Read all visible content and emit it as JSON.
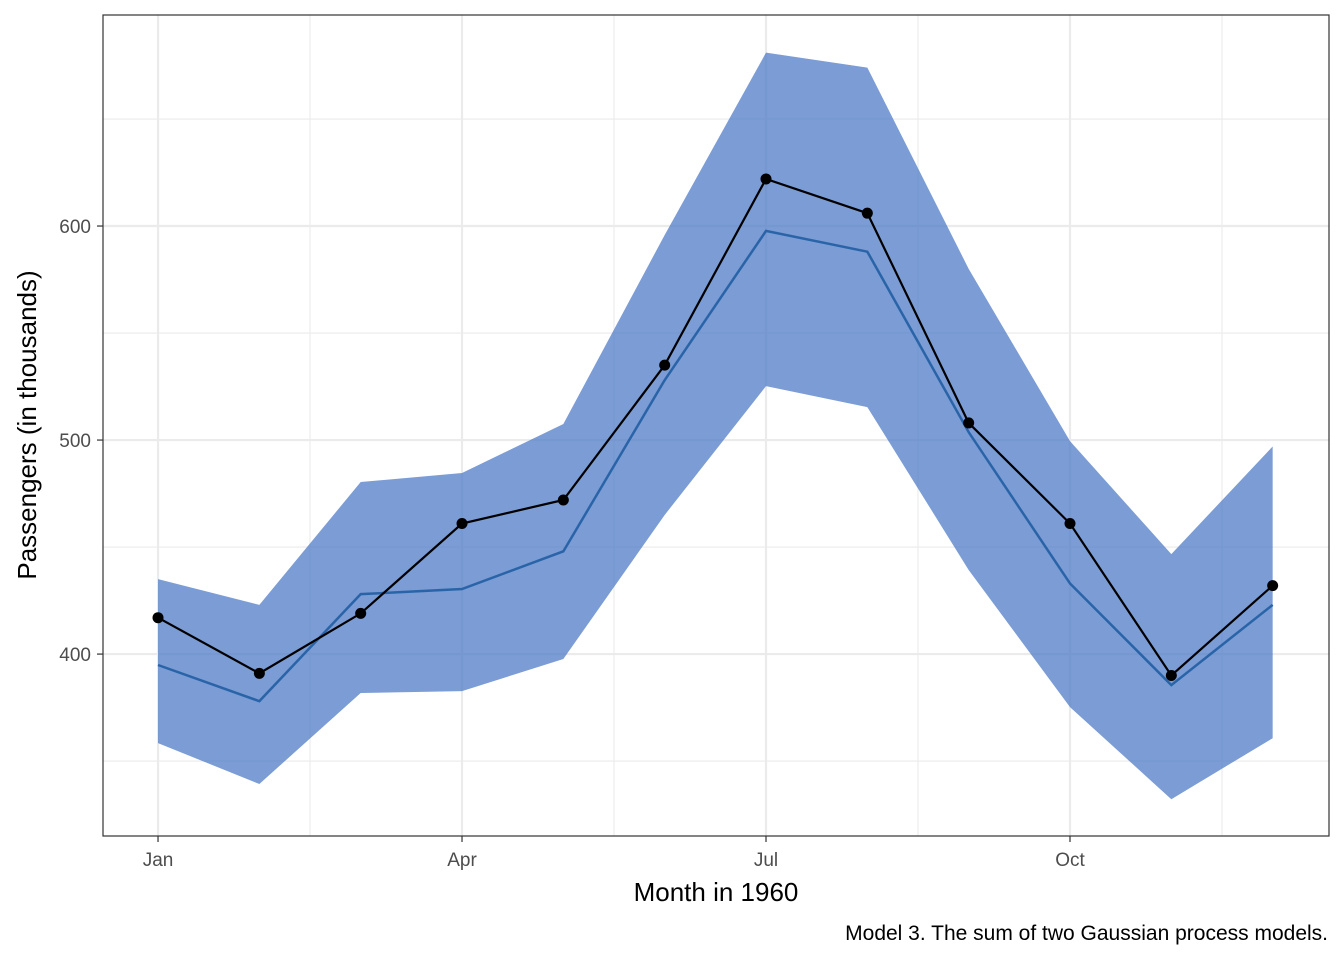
{
  "chart_data": {
    "type": "line",
    "title": "",
    "xlabel": "Month in 1960",
    "ylabel": "Passengers (in thousands)",
    "caption": "Model 3. The sum of two Gaussian process models.",
    "x": [
      1,
      2,
      3,
      4,
      5,
      6,
      7,
      8,
      9,
      10,
      11,
      12
    ],
    "x_ticks": [
      {
        "value": 1,
        "label": "Jan"
      },
      {
        "value": 4,
        "label": "Apr"
      },
      {
        "value": 7,
        "label": "Jul"
      },
      {
        "value": 10,
        "label": "Oct"
      }
    ],
    "y_ticks": [
      400,
      500,
      600
    ],
    "xlim": [
      0.457,
      12.556
    ],
    "ylim": [
      315,
      698.6
    ],
    "grid": true,
    "colors": {
      "band": "#4a77c4",
      "mean": "#2a64a8",
      "observed": "#000000"
    },
    "series": [
      {
        "role": "observed",
        "values": [
          417,
          391,
          419,
          461,
          472,
          535,
          622,
          606,
          508,
          461,
          390,
          432
        ]
      },
      {
        "role": "mean",
        "values": [
          394.9,
          378,
          428,
          430.4,
          448,
          528,
          597.7,
          588,
          503.7,
          433,
          385.5,
          423
        ]
      },
      {
        "role": "upper",
        "values": [
          435,
          423,
          480.4,
          484.6,
          507.5,
          595.8,
          681,
          674,
          580,
          499.5,
          446.7,
          497
        ]
      },
      {
        "role": "lower",
        "values": [
          358.4,
          339.3,
          381.8,
          382.7,
          397.7,
          465,
          525.2,
          515.4,
          439.3,
          375.2,
          332.2,
          360.7
        ]
      }
    ]
  }
}
